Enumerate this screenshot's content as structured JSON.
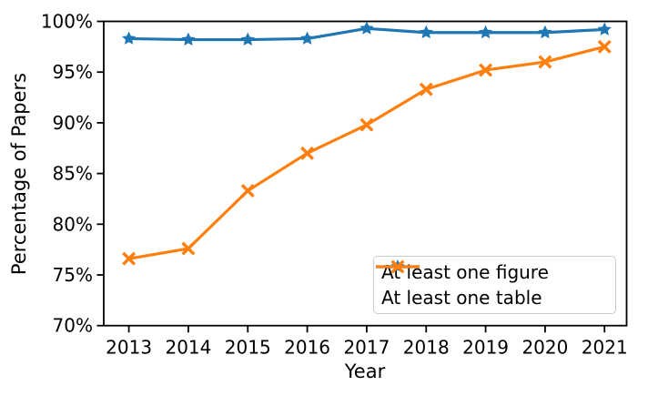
{
  "chart_data": {
    "type": "line",
    "title": "",
    "xlabel": "Year",
    "ylabel": "Percentage of Papers",
    "x": [
      2013,
      2014,
      2015,
      2016,
      2017,
      2018,
      2019,
      2020,
      2021
    ],
    "x_tick_labels": [
      "2013",
      "2014",
      "2015",
      "2016",
      "2017",
      "2018",
      "2019",
      "2020",
      "2021"
    ],
    "y_ticks": [
      70,
      75,
      80,
      85,
      90,
      95,
      100
    ],
    "y_tick_labels": [
      "70%",
      "75%",
      "80%",
      "85%",
      "90%",
      "95%",
      "100%"
    ],
    "ylim": [
      70,
      100
    ],
    "grid": false,
    "legend_position": "lower right",
    "series": [
      {
        "name": "At least one figure",
        "marker": "star",
        "color": "#1f77b4",
        "values": [
          98.3,
          98.2,
          98.2,
          98.3,
          99.3,
          98.9,
          98.9,
          98.9,
          99.2
        ]
      },
      {
        "name": "At least one table",
        "marker": "x",
        "color": "#ff7f0e",
        "values": [
          76.6,
          77.6,
          83.3,
          87.0,
          89.8,
          93.3,
          95.2,
          96.0,
          97.5
        ]
      }
    ]
  }
}
